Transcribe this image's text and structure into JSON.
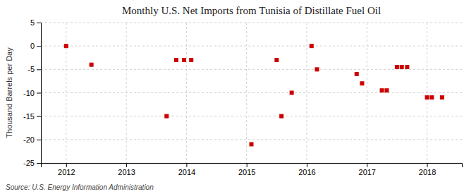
{
  "chart_data": {
    "type": "scatter",
    "title": "Monthly U.S. Net Imports from Tunisia of Distillate Fuel Oil",
    "ylabel": "Thousand Barrels per Day",
    "source": "Source: U.S. Energy Information Administration",
    "color": "#cc0000",
    "marker": "square",
    "grid": true,
    "x": [
      2012.0,
      2012.42,
      2013.67,
      2013.83,
      2013.96,
      2014.08,
      2015.08,
      2015.5,
      2015.58,
      2015.75,
      2016.08,
      2016.17,
      2016.83,
      2016.92,
      2017.25,
      2017.33,
      2017.5,
      2017.58,
      2017.67,
      2018.0,
      2018.08,
      2018.25
    ],
    "values": [
      0,
      -4,
      -15,
      -3,
      -3,
      -3,
      -21,
      -3,
      -15,
      -10,
      0,
      -5,
      -6,
      -8,
      -9.5,
      -9.5,
      -4.5,
      -4.5,
      -4.5,
      -11,
      -11,
      -11
    ],
    "xlim": [
      2011.58,
      2018.58
    ],
    "xticks": [
      2012,
      2013,
      2014,
      2015,
      2016,
      2017,
      2018
    ],
    "ylim": [
      -25,
      5
    ],
    "yticks": [
      5,
      0,
      -5,
      -10,
      -15,
      -20,
      -25
    ]
  }
}
